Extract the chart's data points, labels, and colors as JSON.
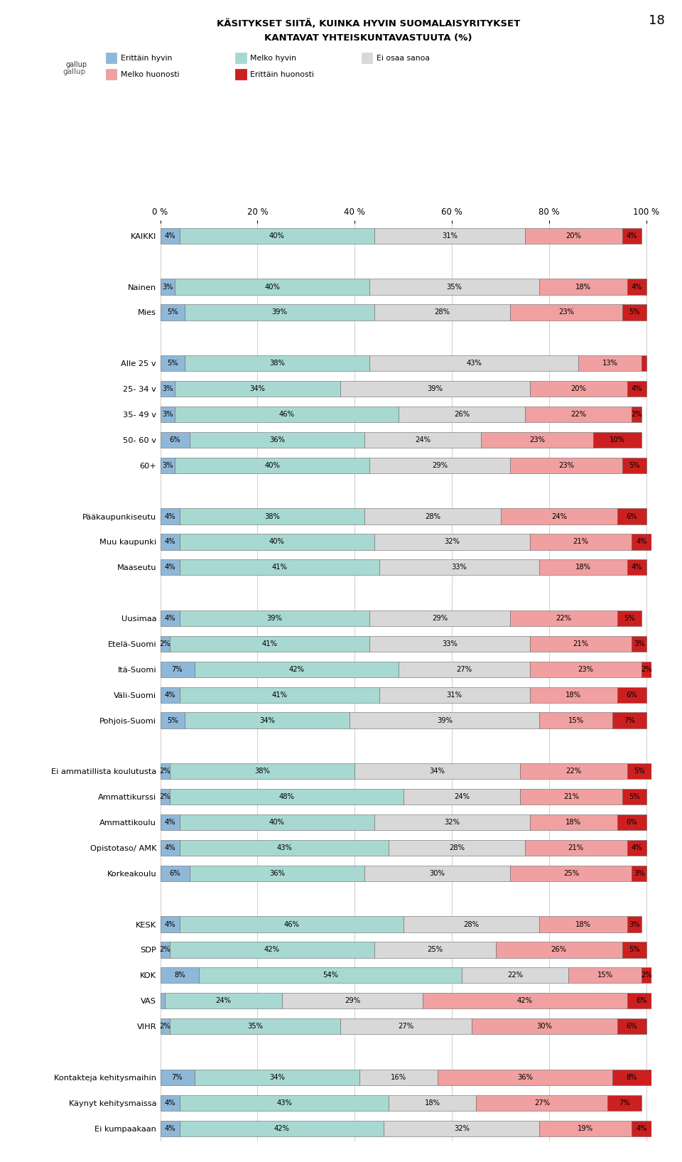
{
  "title_line1": "KÄSITYKSET SIITÄ, KUINKA HYVIN SUOMALAISYRITYKSET",
  "title_line2": "KANTAVAT YHTEISKUNTAVASTUUTA (%)",
  "page_number": "18",
  "colors": {
    "erittain_hyvin": "#8fb8d8",
    "melko_hyvin": "#a8d8d2",
    "ei_osaa_sanoa": "#d8d8d8",
    "melko_huonosti": "#f0a0a0",
    "erittain_huonosti": "#cc2020"
  },
  "categories": [
    "KAIKKI",
    "",
    "Nainen",
    "Mies",
    "",
    "Alle 25 v",
    "25- 34 v",
    "35- 49 v",
    "50- 60 v",
    "60+",
    "",
    "Pääkaupunkiseutu",
    "Muu kaupunki",
    "Maaseutu",
    "",
    "Uusimaa",
    "Etelä-Suomi",
    "Itä-Suomi",
    "Väli-Suomi",
    "Pohjois-Suomi",
    "",
    "Ei ammatillista koulutusta",
    "Ammattikurssi",
    "Ammattikoulu",
    "Opistotaso/ AMK",
    "Korkeakoulu",
    "",
    "KESK",
    "SDP",
    "KOK",
    "VAS",
    "VIHR",
    "",
    "Kontakteja kehitysmaihin",
    "Käynyt kehitysmaissa",
    "Ei kumpaakaan"
  ],
  "data": [
    [
      4,
      40,
      31,
      20,
      4
    ],
    [
      0,
      0,
      0,
      0,
      0
    ],
    [
      3,
      40,
      35,
      18,
      4
    ],
    [
      5,
      39,
      28,
      23,
      5
    ],
    [
      0,
      0,
      0,
      0,
      0
    ],
    [
      5,
      38,
      43,
      13,
      1
    ],
    [
      3,
      34,
      39,
      20,
      4
    ],
    [
      3,
      46,
      26,
      22,
      2
    ],
    [
      6,
      36,
      24,
      23,
      10
    ],
    [
      3,
      40,
      29,
      23,
      5
    ],
    [
      0,
      0,
      0,
      0,
      0
    ],
    [
      4,
      38,
      28,
      24,
      6
    ],
    [
      4,
      40,
      32,
      21,
      4
    ],
    [
      4,
      41,
      33,
      18,
      4
    ],
    [
      0,
      0,
      0,
      0,
      0
    ],
    [
      4,
      39,
      29,
      22,
      5
    ],
    [
      2,
      41,
      33,
      21,
      3
    ],
    [
      7,
      42,
      27,
      23,
      2
    ],
    [
      4,
      41,
      31,
      18,
      6
    ],
    [
      5,
      34,
      39,
      15,
      7
    ],
    [
      0,
      0,
      0,
      0,
      0
    ],
    [
      2,
      38,
      34,
      22,
      5
    ],
    [
      2,
      48,
      24,
      21,
      5
    ],
    [
      4,
      40,
      32,
      18,
      6
    ],
    [
      4,
      43,
      28,
      21,
      4
    ],
    [
      6,
      36,
      30,
      25,
      3
    ],
    [
      0,
      0,
      0,
      0,
      0
    ],
    [
      4,
      46,
      28,
      18,
      3
    ],
    [
      2,
      42,
      25,
      26,
      5
    ],
    [
      8,
      54,
      22,
      15,
      2
    ],
    [
      1,
      24,
      29,
      42,
      6
    ],
    [
      2,
      35,
      27,
      30,
      6
    ],
    [
      0,
      0,
      0,
      0,
      0
    ],
    [
      7,
      34,
      16,
      36,
      8
    ],
    [
      4,
      43,
      18,
      27,
      7
    ],
    [
      4,
      42,
      32,
      19,
      4
    ]
  ],
  "legend_labels": [
    "Erittäin hyvin",
    "Melko hyvin",
    "Ei osaa sanoa",
    "Melko huonosti",
    "Erittäin huonosti"
  ]
}
